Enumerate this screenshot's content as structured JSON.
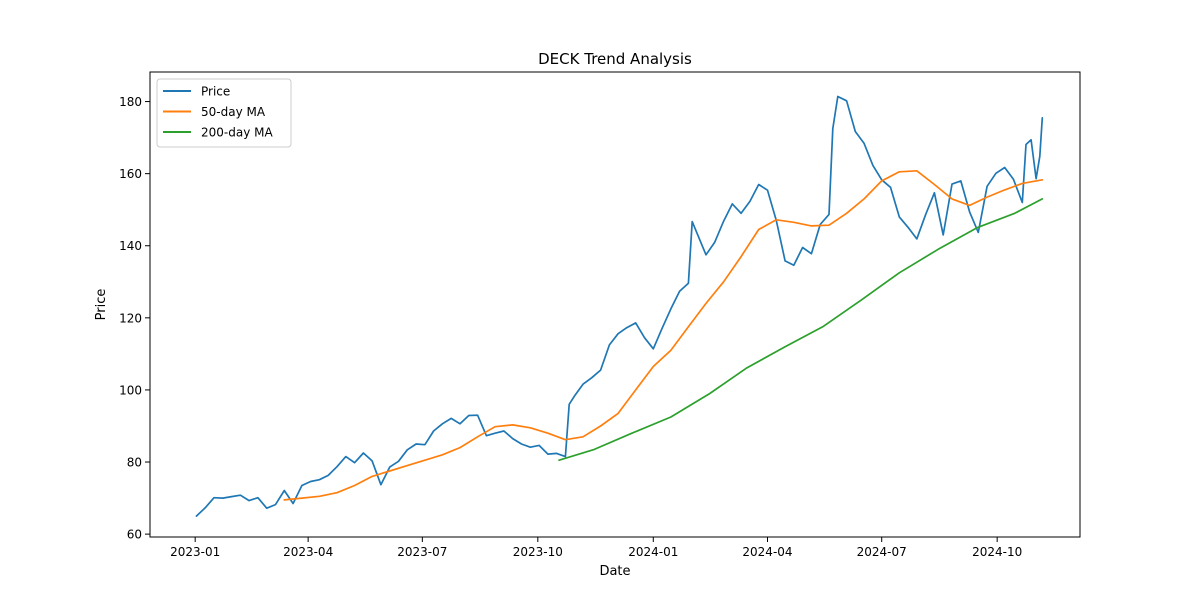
{
  "chart_data": {
    "type": "line",
    "title": "DECK Trend Analysis",
    "xlabel": "Date",
    "ylabel": "Price",
    "x_ticks": [
      "2023-01",
      "2023-04",
      "2023-07",
      "2023-10",
      "2024-01",
      "2024-04",
      "2024-07",
      "2024-10"
    ],
    "y_ticks": [
      60,
      80,
      100,
      120,
      140,
      160,
      180
    ],
    "xlim": [
      "2022-11-26",
      "2024-12-06"
    ],
    "ylim": [
      59.2,
      188.2
    ],
    "grid": false,
    "legend_position": "top-left",
    "series": [
      {
        "name": "Price",
        "color": "#1f77b4",
        "points": [
          [
            "2023-01-02",
            65.0
          ],
          [
            "2023-01-09",
            67.3
          ],
          [
            "2023-01-16",
            70.1
          ],
          [
            "2023-01-23",
            70.0
          ],
          [
            "2023-01-30",
            70.4
          ],
          [
            "2023-02-06",
            70.8
          ],
          [
            "2023-02-13",
            69.3
          ],
          [
            "2023-02-20",
            70.1
          ],
          [
            "2023-02-27",
            67.2
          ],
          [
            "2023-03-06",
            68.2
          ],
          [
            "2023-03-13",
            72.1
          ],
          [
            "2023-03-20",
            68.5
          ],
          [
            "2023-03-27",
            73.5
          ],
          [
            "2023-04-03",
            74.6
          ],
          [
            "2023-04-10",
            75.1
          ],
          [
            "2023-04-17",
            76.3
          ],
          [
            "2023-04-24",
            78.7
          ],
          [
            "2023-05-01",
            81.5
          ],
          [
            "2023-05-08",
            79.8
          ],
          [
            "2023-05-15",
            82.5
          ],
          [
            "2023-05-22",
            80.3
          ],
          [
            "2023-05-29",
            73.7
          ],
          [
            "2023-06-05",
            78.6
          ],
          [
            "2023-06-12",
            80.2
          ],
          [
            "2023-06-19",
            83.4
          ],
          [
            "2023-06-26",
            85.0
          ],
          [
            "2023-07-03",
            84.8
          ],
          [
            "2023-07-10",
            88.6
          ],
          [
            "2023-07-17",
            90.6
          ],
          [
            "2023-07-24",
            92.1
          ],
          [
            "2023-07-31",
            90.6
          ],
          [
            "2023-08-07",
            92.9
          ],
          [
            "2023-08-14",
            93.0
          ],
          [
            "2023-08-21",
            87.3
          ],
          [
            "2023-08-28",
            88.0
          ],
          [
            "2023-09-04",
            88.6
          ],
          [
            "2023-09-11",
            86.5
          ],
          [
            "2023-09-18",
            85.0
          ],
          [
            "2023-09-25",
            84.1
          ],
          [
            "2023-10-02",
            84.6
          ],
          [
            "2023-10-09",
            82.2
          ],
          [
            "2023-10-16",
            82.4
          ],
          [
            "2023-10-23",
            81.5
          ],
          [
            "2023-10-26",
            96.0
          ],
          [
            "2023-10-30",
            98.2
          ],
          [
            "2023-11-06",
            101.6
          ],
          [
            "2023-11-13",
            103.4
          ],
          [
            "2023-11-20",
            105.5
          ],
          [
            "2023-11-27",
            112.5
          ],
          [
            "2023-12-04",
            115.6
          ],
          [
            "2023-12-11",
            117.3
          ],
          [
            "2023-12-18",
            118.6
          ],
          [
            "2023-12-25",
            114.5
          ],
          [
            "2024-01-01",
            111.4
          ],
          [
            "2024-01-08",
            117.1
          ],
          [
            "2024-01-15",
            122.5
          ],
          [
            "2024-01-22",
            127.4
          ],
          [
            "2024-01-29",
            129.6
          ],
          [
            "2024-02-01",
            146.7
          ],
          [
            "2024-02-12",
            137.5
          ],
          [
            "2024-02-19",
            141.0
          ],
          [
            "2024-02-26",
            146.8
          ],
          [
            "2024-03-04",
            151.6
          ],
          [
            "2024-03-11",
            149.0
          ],
          [
            "2024-03-18",
            152.3
          ],
          [
            "2024-03-25",
            157.0
          ],
          [
            "2024-04-01",
            155.4
          ],
          [
            "2024-04-08",
            147.0
          ],
          [
            "2024-04-15",
            135.8
          ],
          [
            "2024-04-22",
            134.6
          ],
          [
            "2024-04-29",
            139.5
          ],
          [
            "2024-05-06",
            137.8
          ],
          [
            "2024-05-13",
            145.9
          ],
          [
            "2024-05-20",
            148.7
          ],
          [
            "2024-05-23",
            172.5
          ],
          [
            "2024-05-27",
            181.4
          ],
          [
            "2024-06-03",
            180.2
          ],
          [
            "2024-06-10",
            171.7
          ],
          [
            "2024-06-17",
            168.4
          ],
          [
            "2024-06-24",
            162.3
          ],
          [
            "2024-07-01",
            158.3
          ],
          [
            "2024-07-08",
            156.2
          ],
          [
            "2024-07-15",
            148.0
          ],
          [
            "2024-07-22",
            145.1
          ],
          [
            "2024-07-29",
            141.9
          ],
          [
            "2024-08-05",
            148.6
          ],
          [
            "2024-08-12",
            154.7
          ],
          [
            "2024-08-19",
            143.0
          ],
          [
            "2024-08-26",
            157.1
          ],
          [
            "2024-09-02",
            158.0
          ],
          [
            "2024-09-09",
            149.4
          ],
          [
            "2024-09-16",
            143.7
          ],
          [
            "2024-09-23",
            156.5
          ],
          [
            "2024-09-30",
            160.1
          ],
          [
            "2024-10-07",
            161.7
          ],
          [
            "2024-10-14",
            158.4
          ],
          [
            "2024-10-21",
            152.0
          ],
          [
            "2024-10-24",
            168.1
          ],
          [
            "2024-10-28",
            169.4
          ],
          [
            "2024-11-01",
            158.6
          ],
          [
            "2024-11-04",
            164.8
          ],
          [
            "2024-11-06",
            175.5
          ]
        ]
      },
      {
        "name": "50-day MA",
        "color": "#ff7f0e",
        "points": [
          [
            "2023-03-13",
            69.5
          ],
          [
            "2023-03-27",
            70.0
          ],
          [
            "2023-04-10",
            70.5
          ],
          [
            "2023-04-24",
            71.5
          ],
          [
            "2023-05-08",
            73.5
          ],
          [
            "2023-05-22",
            76.0
          ],
          [
            "2023-06-05",
            77.5
          ],
          [
            "2023-06-19",
            79.0
          ],
          [
            "2023-07-03",
            80.5
          ],
          [
            "2023-07-17",
            82.0
          ],
          [
            "2023-07-31",
            84.0
          ],
          [
            "2023-08-14",
            87.0
          ],
          [
            "2023-08-28",
            89.8
          ],
          [
            "2023-09-11",
            90.3
          ],
          [
            "2023-09-25",
            89.5
          ],
          [
            "2023-10-09",
            88.0
          ],
          [
            "2023-10-23",
            86.2
          ],
          [
            "2023-11-06",
            87.0
          ],
          [
            "2023-11-20",
            90.0
          ],
          [
            "2023-12-04",
            93.5
          ],
          [
            "2023-12-18",
            100.0
          ],
          [
            "2024-01-01",
            106.5
          ],
          [
            "2024-01-15",
            111.0
          ],
          [
            "2024-01-29",
            117.5
          ],
          [
            "2024-02-12",
            124.0
          ],
          [
            "2024-02-26",
            130.0
          ],
          [
            "2024-03-11",
            137.0
          ],
          [
            "2024-03-25",
            144.5
          ],
          [
            "2024-04-08",
            147.2
          ],
          [
            "2024-04-22",
            146.5
          ],
          [
            "2024-05-06",
            145.5
          ],
          [
            "2024-05-20",
            145.7
          ],
          [
            "2024-06-03",
            149.0
          ],
          [
            "2024-06-17",
            153.0
          ],
          [
            "2024-07-01",
            158.0
          ],
          [
            "2024-07-15",
            160.5
          ],
          [
            "2024-07-29",
            160.8
          ],
          [
            "2024-08-12",
            157.0
          ],
          [
            "2024-08-26",
            153.0
          ],
          [
            "2024-09-09",
            151.2
          ],
          [
            "2024-09-23",
            153.5
          ],
          [
            "2024-10-07",
            155.5
          ],
          [
            "2024-10-21",
            157.3
          ],
          [
            "2024-11-06",
            158.3
          ]
        ]
      },
      {
        "name": "200-day MA",
        "color": "#2ca02c",
        "points": [
          [
            "2023-10-18",
            80.5
          ],
          [
            "2023-11-15",
            83.5
          ],
          [
            "2023-12-15",
            88.0
          ],
          [
            "2024-01-15",
            92.5
          ],
          [
            "2024-02-15",
            99.0
          ],
          [
            "2024-03-15",
            106.0
          ],
          [
            "2024-04-15",
            112.0
          ],
          [
            "2024-05-15",
            117.5
          ],
          [
            "2024-06-15",
            125.0
          ],
          [
            "2024-07-15",
            132.5
          ],
          [
            "2024-08-15",
            139.0
          ],
          [
            "2024-09-15",
            145.0
          ],
          [
            "2024-10-15",
            149.0
          ],
          [
            "2024-11-06",
            153.0
          ]
        ]
      }
    ]
  }
}
